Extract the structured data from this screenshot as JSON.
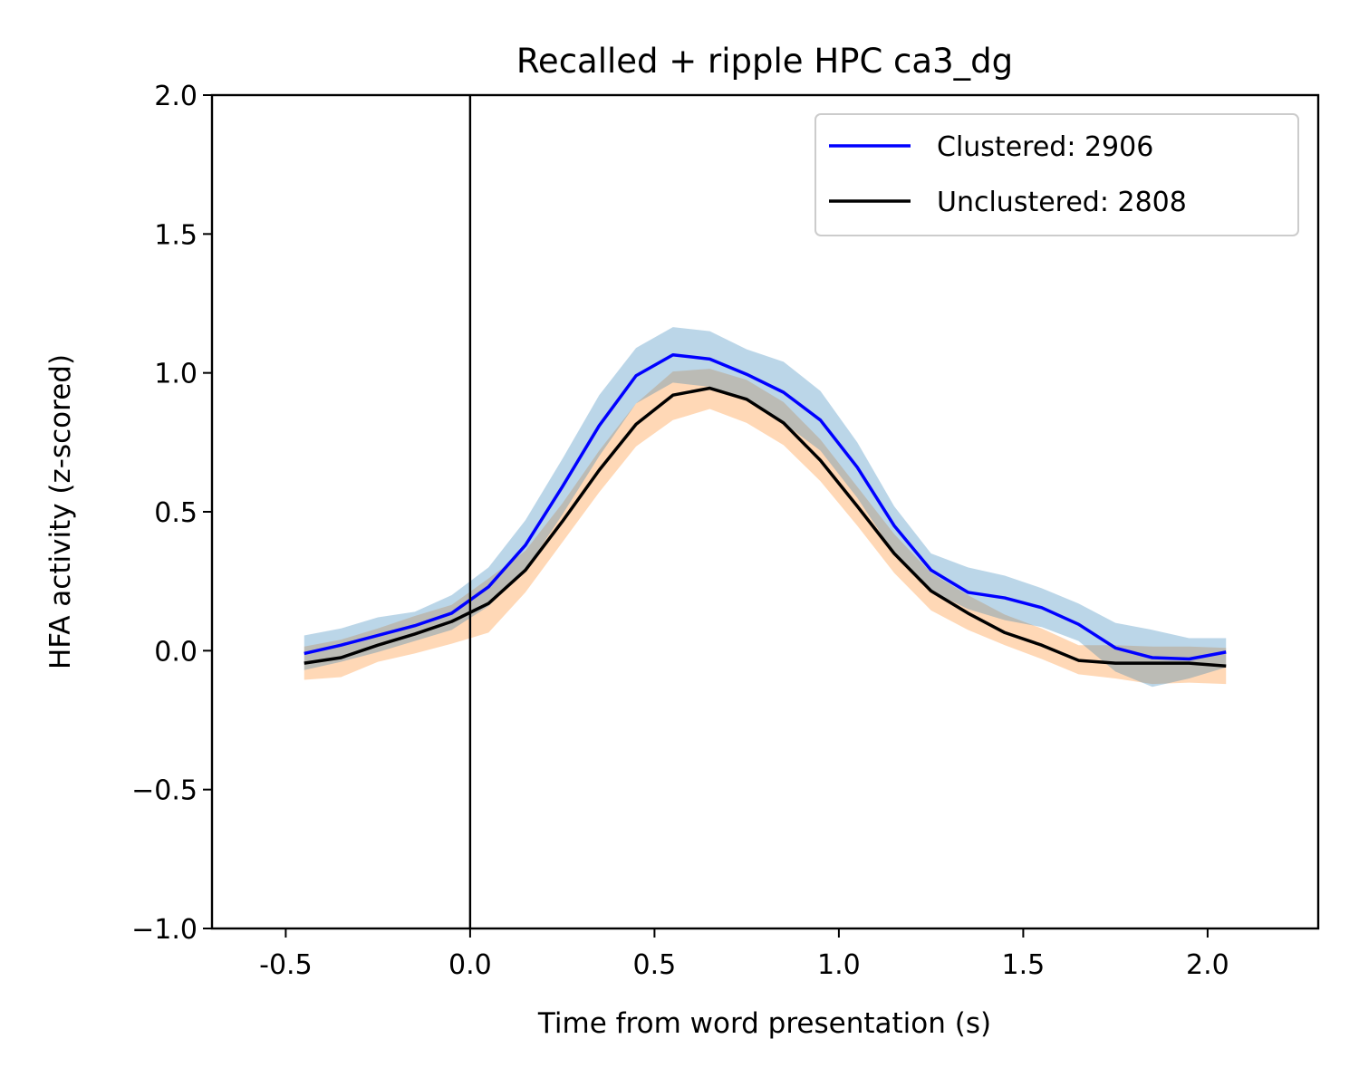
{
  "chart_data": {
    "type": "line",
    "title": "Recalled + ripple HPC ca3_dg",
    "xlabel": "Time from word presentation (s)",
    "ylabel": "HFA activity (z-scored)",
    "xlim": [
      -0.7,
      2.3
    ],
    "ylim": [
      -1.0,
      2.0
    ],
    "xticks": [
      -0.5,
      0.0,
      0.5,
      1.0,
      1.5,
      2.0
    ],
    "xtick_labels": [
      "-0.5",
      "0.0",
      "0.5",
      "1.0",
      "1.5",
      "2.0"
    ],
    "yticks": [
      -1.0,
      -0.5,
      0.0,
      0.5,
      1.0,
      1.5,
      2.0
    ],
    "ytick_labels": [
      "−1.0",
      "−0.5",
      "0.0",
      "0.5",
      "1.0",
      "1.5",
      "2.0"
    ],
    "vline_x": 0.0,
    "grid": false,
    "legend_position": "top-right",
    "x": [
      -0.45,
      -0.35,
      -0.25,
      -0.15,
      -0.05,
      0.05,
      0.15,
      0.25,
      0.35,
      0.45,
      0.55,
      0.65,
      0.75,
      0.85,
      0.95,
      1.05,
      1.15,
      1.25,
      1.35,
      1.45,
      1.55,
      1.65,
      1.75,
      1.85,
      1.95,
      2.05
    ],
    "series": [
      {
        "name": "Clustered: 2906",
        "color": "#0000ff",
        "band_color": "#1f77b4",
        "values": [
          -0.01,
          0.02,
          0.055,
          0.09,
          0.135,
          0.23,
          0.38,
          0.59,
          0.81,
          0.99,
          1.065,
          1.05,
          0.995,
          0.93,
          0.83,
          0.66,
          0.45,
          0.29,
          0.21,
          0.19,
          0.155,
          0.095,
          0.01,
          -0.025,
          -0.03,
          -0.005
        ],
        "lower": [
          -0.07,
          -0.04,
          -0.005,
          0.035,
          0.075,
          0.16,
          0.29,
          0.49,
          0.7,
          0.89,
          0.965,
          0.95,
          0.905,
          0.82,
          0.72,
          0.55,
          0.35,
          0.215,
          0.15,
          0.11,
          0.085,
          0.035,
          -0.075,
          -0.13,
          -0.1,
          -0.06
        ],
        "upper": [
          0.055,
          0.08,
          0.12,
          0.14,
          0.2,
          0.3,
          0.47,
          0.69,
          0.92,
          1.09,
          1.165,
          1.15,
          1.085,
          1.04,
          0.935,
          0.75,
          0.52,
          0.35,
          0.3,
          0.27,
          0.225,
          0.17,
          0.1,
          0.075,
          0.045,
          0.045
        ]
      },
      {
        "name": "Unclustered: 2808",
        "color": "#000000",
        "band_color": "#ff7f0e",
        "values": [
          -0.045,
          -0.025,
          0.02,
          0.06,
          0.105,
          0.17,
          0.29,
          0.465,
          0.65,
          0.815,
          0.92,
          0.945,
          0.905,
          0.82,
          0.685,
          0.52,
          0.35,
          0.215,
          0.135,
          0.065,
          0.02,
          -0.035,
          -0.045,
          -0.045,
          -0.045,
          -0.055
        ],
        "lower": [
          -0.105,
          -0.095,
          -0.04,
          -0.01,
          0.025,
          0.065,
          0.21,
          0.39,
          0.57,
          0.735,
          0.83,
          0.87,
          0.82,
          0.74,
          0.61,
          0.45,
          0.28,
          0.145,
          0.075,
          0.02,
          -0.03,
          -0.085,
          -0.1,
          -0.12,
          -0.115,
          -0.12
        ],
        "upper": [
          0.015,
          0.04,
          0.08,
          0.125,
          0.165,
          0.26,
          0.36,
          0.53,
          0.72,
          0.89,
          1.005,
          1.015,
          0.975,
          0.895,
          0.76,
          0.59,
          0.42,
          0.28,
          0.2,
          0.13,
          0.08,
          0.02,
          0.02,
          0.015,
          0.015,
          0.01
        ]
      }
    ]
  }
}
